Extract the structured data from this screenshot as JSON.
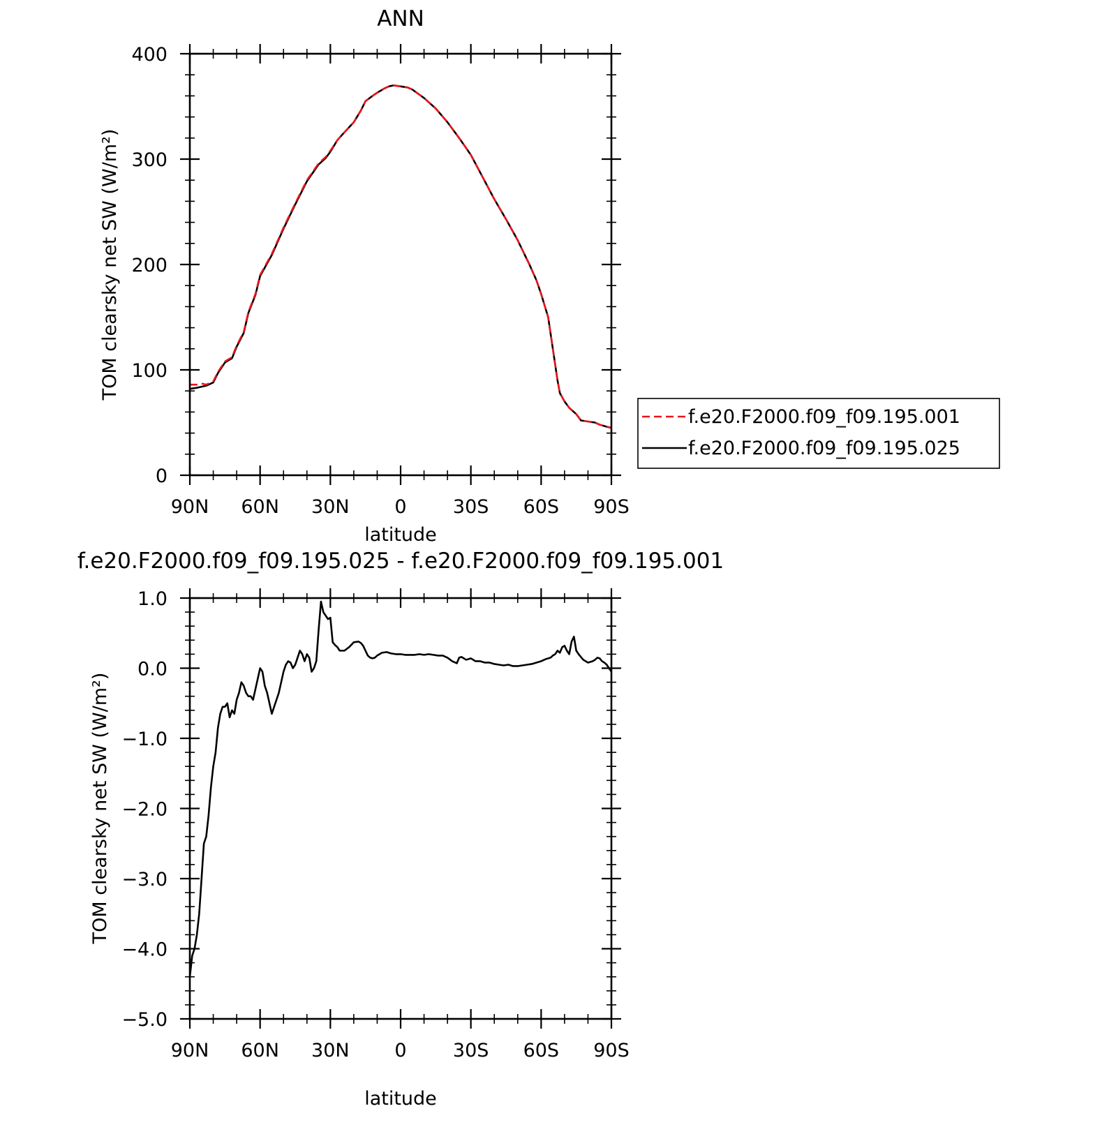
{
  "chart_data": [
    {
      "type": "line",
      "title": "ANN",
      "xlabel": "latitude",
      "ylabel": "TOM clearsky net SW (W/m²)",
      "x_tick_labels": [
        "90N",
        "60N",
        "30N",
        "0",
        "30S",
        "60S",
        "90S"
      ],
      "x_ticks": [
        90,
        60,
        30,
        0,
        -30,
        -60,
        -90
      ],
      "xlim": [
        90,
        -90
      ],
      "y_ticks": [
        0,
        100,
        200,
        300,
        400
      ],
      "y_tick_labels": [
        "0",
        "100",
        "200",
        "300",
        "400"
      ],
      "ylim": [
        0,
        400
      ],
      "legend": "right",
      "series": [
        {
          "name": "f.e20.F2000.f09_f09.195.001",
          "color": "#e8141c",
          "dash": "dashed",
          "x": [
            90,
            87,
            85,
            83,
            80,
            78,
            75,
            72,
            70,
            67,
            65,
            62,
            60,
            57,
            55,
            52,
            50,
            45,
            40,
            35,
            32,
            30,
            27,
            25,
            20,
            17,
            15,
            12,
            10,
            7,
            5,
            3,
            0,
            -3,
            -5,
            -10,
            -15,
            -20,
            -25,
            -30,
            -35,
            -40,
            -45,
            -50,
            -55,
            -58,
            -60,
            -63,
            -65,
            -67,
            -68,
            -70,
            -72,
            -75,
            -77,
            -80,
            -83,
            -85,
            -88,
            -90
          ],
          "y": [
            86,
            86,
            87,
            86,
            89,
            98,
            108,
            112,
            123,
            136,
            155,
            172,
            190,
            202,
            210,
            225,
            235,
            258,
            280,
            296,
            302,
            308,
            318,
            323,
            335,
            346,
            355,
            360,
            363,
            367,
            369,
            370,
            369,
            368,
            366,
            358,
            348,
            335,
            320,
            304,
            283,
            262,
            243,
            223,
            200,
            185,
            172,
            150,
            120,
            90,
            78,
            70,
            64,
            58,
            52,
            51,
            50,
            48,
            46,
            45
          ]
        },
        {
          "name": "f.e20.F2000.f09_f09.195.025",
          "color": "#000000",
          "dash": "solid",
          "x": [
            90,
            87,
            85,
            83,
            80,
            78,
            75,
            72,
            70,
            67,
            65,
            62,
            60,
            57,
            55,
            52,
            50,
            45,
            40,
            35,
            32,
            30,
            27,
            25,
            20,
            17,
            15,
            12,
            10,
            7,
            5,
            3,
            0,
            -3,
            -5,
            -10,
            -15,
            -20,
            -25,
            -30,
            -35,
            -40,
            -45,
            -50,
            -55,
            -58,
            -60,
            -63,
            -65,
            -67,
            -68,
            -70,
            -72,
            -75,
            -77,
            -80,
            -83,
            -85,
            -88,
            -90
          ],
          "y": [
            82,
            83,
            84,
            85,
            88,
            97,
            107,
            111,
            122,
            135,
            154,
            171,
            189,
            201,
            209,
            224,
            234,
            257,
            279,
            295,
            301,
            307,
            318,
            323,
            335,
            346,
            355,
            360,
            363,
            367,
            369,
            370,
            369,
            368,
            366,
            358,
            348,
            335,
            320,
            304,
            283,
            262,
            243,
            223,
            200,
            185,
            172,
            150,
            120,
            90,
            78,
            70,
            64,
            58,
            52,
            51,
            50,
            48,
            46,
            45
          ]
        }
      ]
    },
    {
      "type": "line",
      "title": "f.e20.F2000.f09_f09.195.025 - f.e20.F2000.f09_f09.195.001",
      "xlabel": "latitude",
      "ylabel": "TOM clearsky net SW (W/m²)",
      "x_tick_labels": [
        "90N",
        "60N",
        "30N",
        "0",
        "30S",
        "60S",
        "90S"
      ],
      "x_ticks": [
        90,
        60,
        30,
        0,
        -30,
        -60,
        -90
      ],
      "xlim": [
        90,
        -90
      ],
      "y_ticks": [
        1.0,
        0.0,
        -1.0,
        -2.0,
        -3.0,
        -4.0,
        -5.0
      ],
      "y_tick_labels": [
        "1.0",
        "0.0",
        "−1.0",
        "−2.0",
        "−3.0",
        "−4.0",
        "−5.0"
      ],
      "ylim": [
        -5,
        1
      ],
      "series": [
        {
          "color": "#000000",
          "dash": "solid",
          "x": [
            90,
            89,
            88,
            87,
            86,
            85,
            84,
            83,
            82,
            81,
            80,
            79,
            78,
            77,
            76,
            75,
            74,
            73,
            72,
            71,
            70,
            69,
            68,
            67,
            66,
            65,
            64,
            63,
            62,
            61,
            60,
            59,
            58,
            57,
            56,
            55,
            54,
            53,
            52,
            51,
            50,
            49,
            48,
            47,
            46,
            45,
            44,
            43,
            42,
            41,
            40,
            39,
            38,
            37,
            36,
            35,
            34,
            33,
            32,
            31,
            30,
            29,
            28,
            27,
            26,
            25,
            24,
            22,
            20,
            18,
            17,
            16,
            15,
            14,
            13,
            12,
            11,
            10,
            8,
            6,
            4,
            2,
            0,
            -2,
            -4,
            -6,
            -8,
            -10,
            -12,
            -14,
            -16,
            -18,
            -20,
            -22,
            -24,
            -25,
            -26,
            -28,
            -30,
            -32,
            -34,
            -36,
            -38,
            -40,
            -42,
            -44,
            -46,
            -48,
            -50,
            -52,
            -54,
            -56,
            -58,
            -60,
            -62,
            -64,
            -65,
            -66,
            -67,
            -68,
            -69,
            -70,
            -71,
            -72,
            -73,
            -74,
            -75,
            -76,
            -78,
            -80,
            -82,
            -83,
            -84,
            -85,
            -86,
            -87,
            -88,
            -89,
            -90
          ],
          "y": [
            -4.4,
            -4.1,
            -4.0,
            -3.8,
            -3.5,
            -3.0,
            -2.5,
            -2.4,
            -2.1,
            -1.7,
            -1.4,
            -1.2,
            -0.85,
            -0.65,
            -0.55,
            -0.55,
            -0.5,
            -0.7,
            -0.6,
            -0.65,
            -0.45,
            -0.35,
            -0.2,
            -0.25,
            -0.35,
            -0.4,
            -0.4,
            -0.45,
            -0.3,
            -0.15,
            0.0,
            -0.05,
            -0.25,
            -0.35,
            -0.5,
            -0.65,
            -0.55,
            -0.45,
            -0.35,
            -0.2,
            -0.05,
            0.05,
            0.1,
            0.08,
            0.0,
            0.05,
            0.15,
            0.25,
            0.2,
            0.1,
            0.2,
            0.15,
            -0.05,
            0.0,
            0.1,
            0.55,
            0.95,
            0.8,
            0.75,
            0.7,
            0.72,
            0.37,
            0.33,
            0.3,
            0.25,
            0.25,
            0.25,
            0.3,
            0.37,
            0.38,
            0.36,
            0.32,
            0.25,
            0.18,
            0.15,
            0.14,
            0.15,
            0.18,
            0.22,
            0.23,
            0.21,
            0.2,
            0.2,
            0.19,
            0.19,
            0.19,
            0.2,
            0.19,
            0.2,
            0.19,
            0.18,
            0.18,
            0.15,
            0.1,
            0.07,
            0.15,
            0.16,
            0.12,
            0.14,
            0.1,
            0.1,
            0.08,
            0.08,
            0.06,
            0.05,
            0.04,
            0.05,
            0.03,
            0.03,
            0.04,
            0.05,
            0.06,
            0.08,
            0.1,
            0.13,
            0.15,
            0.18,
            0.2,
            0.25,
            0.22,
            0.3,
            0.32,
            0.25,
            0.2,
            0.38,
            0.45,
            0.25,
            0.2,
            0.12,
            0.08,
            0.1,
            0.12,
            0.15,
            0.14,
            0.1,
            0.08,
            0.05,
            0.0,
            -0.05
          ]
        }
      ]
    }
  ]
}
